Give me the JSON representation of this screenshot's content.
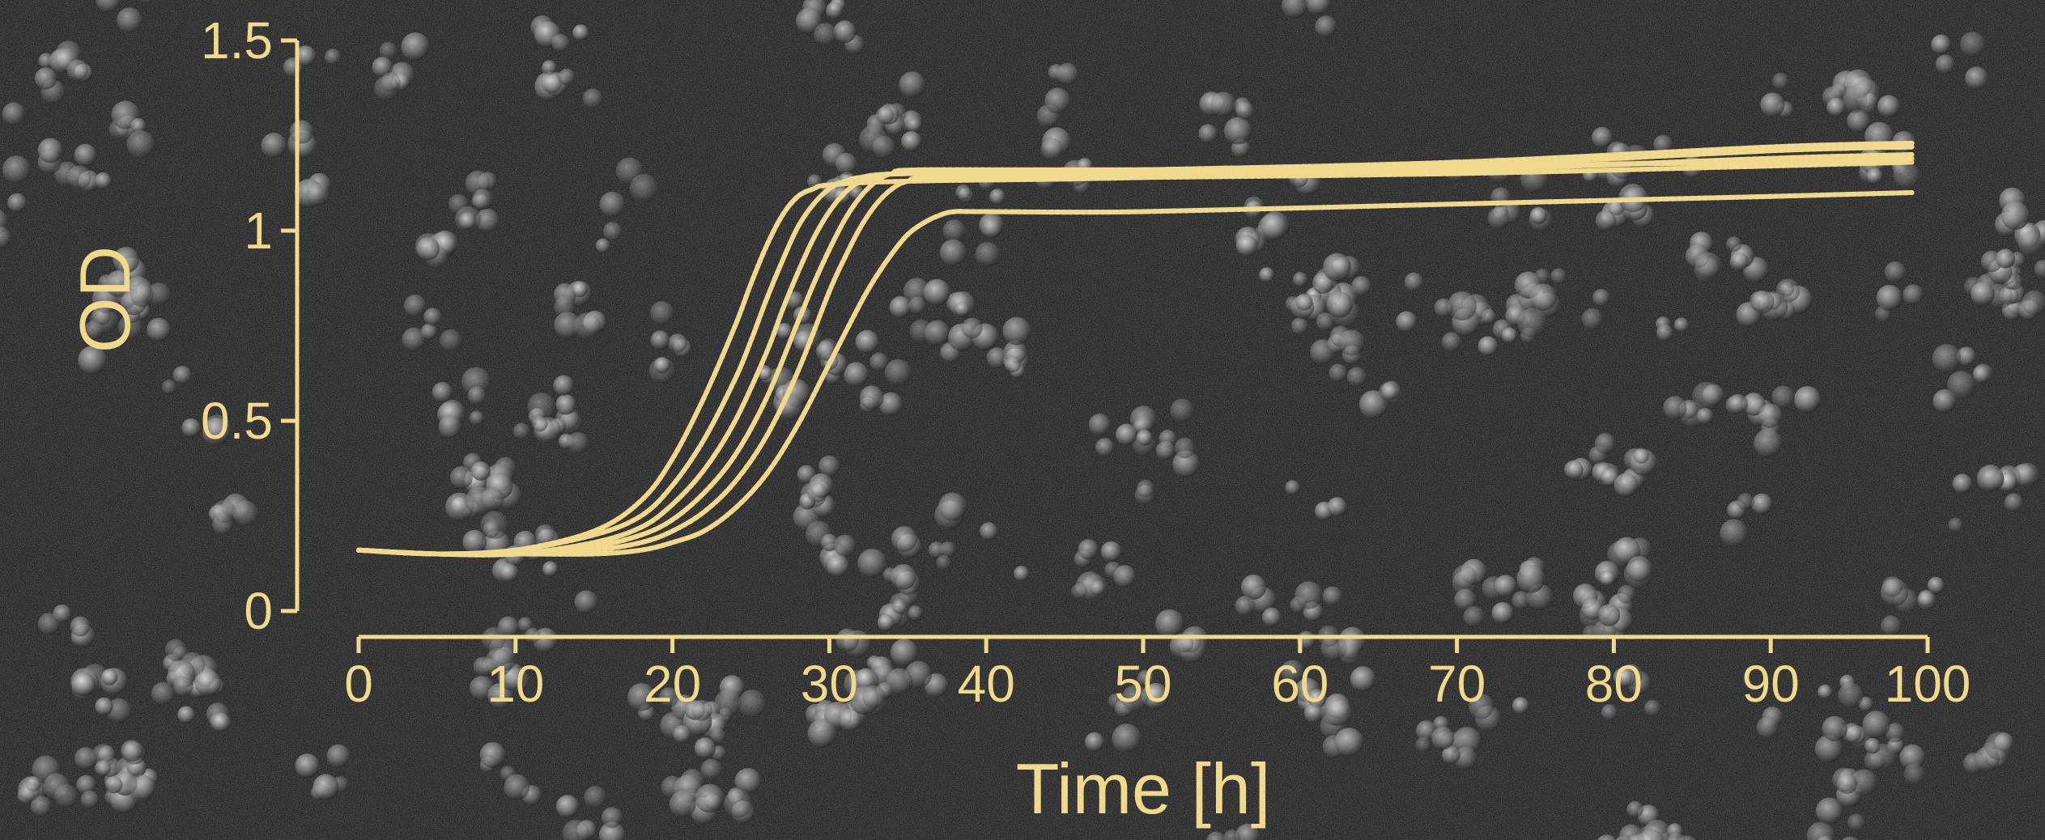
{
  "chart_data": {
    "type": "line",
    "title": "",
    "xlabel": "Time [h]",
    "ylabel": "OD",
    "xlim": [
      0,
      100
    ],
    "ylim": [
      0,
      1.5
    ],
    "x_ticks": [
      0,
      10,
      20,
      30,
      40,
      50,
      60,
      70,
      80,
      90,
      100
    ],
    "y_ticks": [
      0,
      0.5,
      1,
      1.5
    ],
    "x_tick_labels": [
      "0",
      "10",
      "20",
      "30",
      "40",
      "50",
      "60",
      "70",
      "80",
      "90",
      "100"
    ],
    "y_tick_labels": [
      "0",
      "0.5",
      "1",
      "1.5"
    ],
    "grid": false,
    "legend": "none",
    "background": "dark micrograph of bacterial cell clusters",
    "colors": {
      "curves": "#f0d98c",
      "axes": "#f0d98c",
      "background": "#0d0d0d"
    },
    "series": [
      {
        "x": [
          0,
          5,
          10,
          15,
          18,
          20,
          22,
          24,
          25,
          26,
          27,
          28,
          29,
          30,
          35,
          50,
          70,
          90,
          99
        ],
        "y": [
          0.16,
          0.15,
          0.16,
          0.21,
          0.29,
          0.4,
          0.56,
          0.75,
          0.86,
          0.96,
          1.04,
          1.09,
          1.11,
          1.12,
          1.13,
          1.14,
          1.17,
          1.21,
          1.22
        ]
      },
      {
        "x": [
          0,
          5,
          10,
          15,
          18,
          20,
          22,
          24,
          25,
          26,
          27,
          28,
          29,
          30,
          31,
          32,
          35,
          50,
          70,
          90,
          99
        ],
        "y": [
          0.16,
          0.15,
          0.16,
          0.2,
          0.25,
          0.33,
          0.45,
          0.61,
          0.71,
          0.82,
          0.92,
          1.01,
          1.07,
          1.11,
          1.13,
          1.14,
          1.15,
          1.16,
          1.18,
          1.22,
          1.23
        ]
      },
      {
        "x": [
          0,
          5,
          10,
          15,
          18,
          20,
          22,
          24,
          26,
          27,
          28,
          29,
          30,
          31,
          32,
          33,
          35,
          50,
          70,
          90,
          99
        ],
        "y": [
          0.16,
          0.15,
          0.15,
          0.18,
          0.22,
          0.28,
          0.37,
          0.5,
          0.68,
          0.79,
          0.89,
          0.98,
          1.05,
          1.1,
          1.13,
          1.14,
          1.15,
          1.15,
          1.16,
          1.19,
          1.2
        ]
      },
      {
        "x": [
          0,
          5,
          10,
          15,
          18,
          20,
          22,
          24,
          26,
          28,
          29,
          30,
          31,
          32,
          33,
          34,
          36,
          50,
          70,
          90,
          99
        ],
        "y": [
          0.16,
          0.15,
          0.15,
          0.17,
          0.2,
          0.24,
          0.31,
          0.41,
          0.56,
          0.76,
          0.86,
          0.95,
          1.03,
          1.09,
          1.13,
          1.15,
          1.16,
          1.16,
          1.17,
          1.18,
          1.19
        ]
      },
      {
        "x": [
          0,
          5,
          10,
          15,
          18,
          20,
          22,
          24,
          26,
          28,
          30,
          31,
          32,
          33,
          34,
          35,
          37,
          50,
          70,
          90,
          99
        ],
        "y": [
          0.16,
          0.15,
          0.15,
          0.16,
          0.18,
          0.21,
          0.26,
          0.34,
          0.46,
          0.63,
          0.84,
          0.93,
          1.01,
          1.07,
          1.11,
          1.13,
          1.14,
          1.14,
          1.15,
          1.17,
          1.18
        ]
      },
      {
        "x": [
          0,
          5,
          10,
          15,
          18,
          20,
          22,
          24,
          26,
          28,
          30,
          32,
          33,
          34,
          35,
          36,
          37,
          38,
          40,
          50,
          70,
          90,
          99
        ],
        "y": [
          0.16,
          0.15,
          0.15,
          0.15,
          0.16,
          0.18,
          0.21,
          0.27,
          0.36,
          0.49,
          0.65,
          0.81,
          0.88,
          0.94,
          0.99,
          1.02,
          1.04,
          1.05,
          1.05,
          1.05,
          1.07,
          1.09,
          1.1
        ]
      }
    ]
  }
}
